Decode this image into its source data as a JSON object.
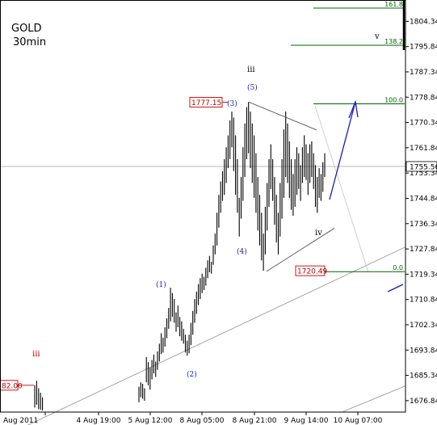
{
  "chart_data": {
    "type": "candlestick",
    "title": "GOLD",
    "subtitle": "30min",
    "ylim": [
      1673.0,
      1811.0
    ],
    "y_ticks": [
      1676.84,
      1685.34,
      1693.84,
      1702.34,
      1710.84,
      1719.34,
      1727.84,
      1736.34,
      1744.84,
      1753.34,
      1761.84,
      1770.34,
      1778.84,
      1787.34,
      1795.84,
      1804.34
    ],
    "x_ticks": [
      "Aug 2011",
      "4 Aug 19:00",
      "5 Aug 12:00",
      "8 Aug 05:00",
      "8 Aug 21:00",
      "9 Aug 14:00",
      "10 Aug 07:00"
    ],
    "current_price": "1755.56",
    "price_labels": [
      {
        "label": "1777.15",
        "value": 1777.15
      },
      {
        "label": "1720.49",
        "value": 1720.49
      },
      {
        "label": "82.00",
        "value": 1682.0
      }
    ],
    "fibonacci": [
      {
        "label": "161.8",
        "value": 1808.8
      },
      {
        "label": "138.2",
        "value": 1796.3
      },
      {
        "label": "100.0",
        "value": 1776.6
      },
      {
        "label": "0.0",
        "value": 1720.2
      }
    ],
    "wave_labels": [
      {
        "text": "iii",
        "style": "red"
      },
      {
        "text": "(1)",
        "style": "blue"
      },
      {
        "text": "(2)",
        "style": "blue"
      },
      {
        "text": "(3)",
        "style": "blue"
      },
      {
        "text": "(4)",
        "style": "blue"
      },
      {
        "text": "(5)",
        "style": "blue"
      },
      {
        "text": "iii",
        "style": "black"
      },
      {
        "text": "iv",
        "style": "black"
      },
      {
        "text": "v",
        "style": "black"
      }
    ],
    "bars": [
      [
        1681.5,
        1676.3
      ],
      [
        1683.0,
        1678.0
      ],
      [
        1682.5,
        1677.5
      ],
      [
        1681.0,
        1676.8
      ],
      [
        1691.5,
        1683.0
      ],
      [
        1689.8,
        1682.0
      ],
      [
        1688.0,
        1680.5
      ],
      [
        1690.5,
        1684.0
      ],
      [
        1692.3,
        1686.0
      ],
      [
        1690.0,
        1684.8
      ],
      [
        1693.4,
        1687.2
      ],
      [
        1696.0,
        1690.0
      ],
      [
        1699.5,
        1692.5
      ],
      [
        1698.0,
        1693.0
      ],
      [
        1701.5,
        1695.0
      ],
      [
        1704.5,
        1697.8
      ],
      [
        1708.0,
        1701.0
      ],
      [
        1714.8,
        1703.5
      ],
      [
        1713.0,
        1705.0
      ],
      [
        1711.0,
        1703.0
      ],
      [
        1706.5,
        1700.0
      ],
      [
        1708.8,
        1701.5
      ],
      [
        1705.0,
        1698.5
      ],
      [
        1703.5,
        1697.0
      ],
      [
        1701.0,
        1696.0
      ],
      [
        1699.0,
        1693.0
      ],
      [
        1697.0,
        1692.0
      ],
      [
        1699.0,
        1692.8
      ],
      [
        1703.0,
        1695.5
      ],
      [
        1707.0,
        1699.0
      ],
      [
        1711.0,
        1703.0
      ],
      [
        1713.5,
        1706.0
      ],
      [
        1716.0,
        1709.0
      ],
      [
        1718.0,
        1711.0
      ],
      [
        1719.5,
        1713.0
      ],
      [
        1718.5,
        1714.0
      ],
      [
        1721.5,
        1715.5
      ],
      [
        1724.0,
        1718.0
      ],
      [
        1725.5,
        1720.0
      ],
      [
        1723.5,
        1719.5
      ],
      [
        1729.0,
        1722.5
      ],
      [
        1733.0,
        1726.0
      ],
      [
        1740.0,
        1729.0
      ],
      [
        1746.0,
        1735.0
      ],
      [
        1750.5,
        1740.0
      ],
      [
        1754.0,
        1744.0
      ],
      [
        1758.0,
        1746.0
      ],
      [
        1762.0,
        1750.0
      ],
      [
        1766.0,
        1755.0
      ],
      [
        1771.0,
        1758.0
      ],
      [
        1774.0,
        1762.0
      ],
      [
        1772.0,
        1754.0
      ],
      [
        1766.0,
        1746.0
      ],
      [
        1758.0,
        1740.0
      ],
      [
        1745.0,
        1732.0
      ],
      [
        1752.0,
        1738.0
      ],
      [
        1762.0,
        1744.0
      ],
      [
        1770.0,
        1752.0
      ],
      [
        1775.5,
        1758.0
      ],
      [
        1777.2,
        1760.0
      ],
      [
        1774.0,
        1755.0
      ],
      [
        1770.0,
        1750.0
      ],
      [
        1766.0,
        1745.0
      ],
      [
        1760.0,
        1740.0
      ],
      [
        1752.0,
        1734.0
      ],
      [
        1746.0,
        1729.0
      ],
      [
        1740.0,
        1724.0
      ],
      [
        1733.0,
        1720.5
      ],
      [
        1742.0,
        1726.0
      ],
      [
        1750.0,
        1734.0
      ],
      [
        1758.0,
        1742.0
      ],
      [
        1763.0,
        1748.0
      ],
      [
        1758.0,
        1744.0
      ],
      [
        1752.0,
        1736.0
      ],
      [
        1746.0,
        1730.0
      ],
      [
        1740.0,
        1726.0
      ],
      [
        1750.0,
        1732.0
      ],
      [
        1758.0,
        1738.0
      ],
      [
        1768.0,
        1745.0
      ],
      [
        1774.0,
        1752.0
      ],
      [
        1770.0,
        1750.0
      ],
      [
        1764.0,
        1745.0
      ],
      [
        1758.0,
        1741.0
      ],
      [
        1753.0,
        1739.0
      ],
      [
        1758.0,
        1742.0
      ],
      [
        1762.0,
        1746.0
      ],
      [
        1760.0,
        1748.0
      ],
      [
        1756.0,
        1744.0
      ],
      [
        1762.0,
        1750.0
      ],
      [
        1766.0,
        1752.0
      ],
      [
        1763.0,
        1751.0
      ],
      [
        1760.0,
        1746.0
      ],
      [
        1763.0,
        1750.0
      ],
      [
        1764.0,
        1752.0
      ],
      [
        1760.0,
        1748.0
      ],
      [
        1756.0,
        1742.0
      ],
      [
        1752.0,
        1740.0
      ],
      [
        1755.0,
        1745.0
      ],
      [
        1753.0,
        1744.0
      ],
      [
        1757.0,
        1747.0
      ],
      [
        1760.0,
        1752.0
      ]
    ]
  }
}
